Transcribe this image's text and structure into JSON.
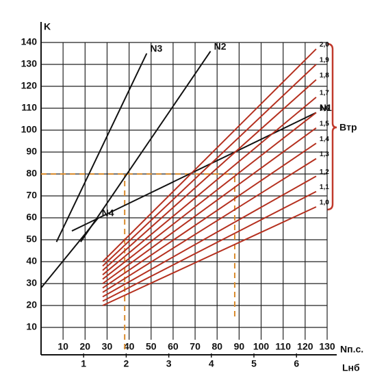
{
  "chart_data": {
    "type": "line",
    "y_label": "K",
    "x_label": "Nп.с.",
    "x2_label": "Lнб",
    "bracket_label": "Bтр",
    "xlim": [
      0,
      130
    ],
    "ylim": [
      0,
      140
    ],
    "x2lim": [
      0,
      6.72
    ],
    "xticks": [
      10,
      20,
      30,
      40,
      50,
      60,
      70,
      80,
      90,
      100,
      110,
      120,
      130
    ],
    "yticks": [
      10,
      20,
      30,
      40,
      50,
      60,
      70,
      80,
      90,
      100,
      110,
      120,
      130,
      140
    ],
    "x2ticks": [
      1,
      2,
      3,
      4,
      5,
      6
    ],
    "grid": true,
    "series": [
      {
        "name": "N1",
        "color": "#111111",
        "x": [
          14,
          125
        ],
        "values": [
          54,
          108
        ]
      },
      {
        "name": "N2",
        "color": "#111111",
        "x": [
          18,
          77
        ],
        "values": [
          49,
          136
        ]
      },
      {
        "name": "N3",
        "color": "#111111",
        "x": [
          7,
          48
        ],
        "values": [
          49,
          135
        ]
      },
      {
        "name": "N4",
        "color": "#111111",
        "x": [
          0,
          26
        ],
        "values": [
          28,
          60
        ]
      },
      {
        "name": "1,0",
        "color": "#b5301f",
        "x": [
          28,
          125
        ],
        "values": [
          20,
          65
        ]
      },
      {
        "name": "1,1",
        "color": "#b5301f",
        "x": [
          28,
          125
        ],
        "values": [
          22,
          72
        ]
      },
      {
        "name": "1,2",
        "color": "#b5301f",
        "x": [
          28,
          125
        ],
        "values": [
          24,
          79
        ]
      },
      {
        "name": "1,3",
        "color": "#b5301f",
        "x": [
          28,
          125
        ],
        "values": [
          26,
          87
        ]
      },
      {
        "name": "1,4",
        "color": "#b5301f",
        "x": [
          28,
          125
        ],
        "values": [
          28,
          94
        ]
      },
      {
        "name": "1,5",
        "color": "#b5301f",
        "x": [
          28,
          125
        ],
        "values": [
          30,
          101
        ]
      },
      {
        "name": "1,6",
        "color": "#b5301f",
        "x": [
          28,
          125
        ],
        "values": [
          32,
          108
        ]
      },
      {
        "name": "1,7",
        "color": "#b5301f",
        "x": [
          28,
          125
        ],
        "values": [
          34,
          115
        ]
      },
      {
        "name": "1,8",
        "color": "#b5301f",
        "x": [
          28,
          125
        ],
        "values": [
          36,
          123
        ]
      },
      {
        "name": "1,9",
        "color": "#b5301f",
        "x": [
          28,
          125
        ],
        "values": [
          38,
          130
        ]
      },
      {
        "name": "2,0",
        "color": "#b5301f",
        "x": [
          28,
          125
        ],
        "values": [
          40,
          137
        ]
      }
    ],
    "guides": [
      {
        "color": "#d98a2b",
        "x": [
          0,
          88
        ],
        "values": [
          80,
          80
        ]
      },
      {
        "color": "#d98a2b",
        "x": [
          38,
          38
        ],
        "values": [
          0,
          80
        ]
      },
      {
        "color": "#d98a2b",
        "x": [
          88,
          88
        ],
        "values": [
          15,
          80
        ]
      }
    ]
  }
}
